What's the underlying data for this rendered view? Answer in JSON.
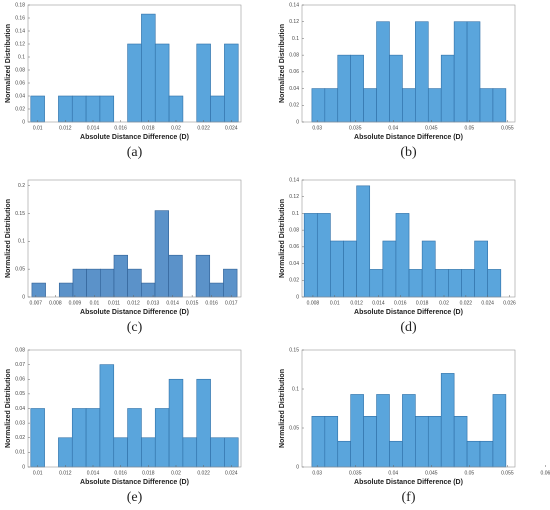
{
  "chart_data": [
    {
      "type": "histogram",
      "caption": "(a)",
      "xlabel": "Absolute Distance Difference (D)",
      "ylabel": "Normalized Distribution",
      "color": "#5aa5dc",
      "edgecolor": "#2f6fa6",
      "bins": [
        0.0095,
        0.0105,
        0.0115,
        0.0125,
        0.0135,
        0.0145,
        0.0155,
        0.0165,
        0.0175,
        0.0185,
        0.0195,
        0.0205,
        0.0215,
        0.0225,
        0.0235,
        0.0245
      ],
      "values": [
        0.04,
        0,
        0.04,
        0.04,
        0.04,
        0.04,
        0,
        0.12,
        0.166,
        0.12,
        0.04,
        0,
        0.12,
        0.04,
        0.12
      ],
      "xlim": [
        0.0093,
        0.0247
      ],
      "xticks": [
        0.01,
        0.012,
        0.014,
        0.016,
        0.018,
        0.02,
        0.022,
        0.024
      ],
      "ylim": [
        0,
        0.18
      ],
      "yticks": [
        0,
        0.02,
        0.04,
        0.06,
        0.08,
        0.1,
        0.12,
        0.14,
        0.16,
        0.18
      ]
    },
    {
      "type": "histogram",
      "caption": "(b)",
      "xlabel": "Absolute Distance Difference (D)",
      "ylabel": "Normalized Distribution",
      "color": "#5aa5dc",
      "edgecolor": "#2f6fa6",
      "bins": [
        0.0293,
        0.031,
        0.0327,
        0.0344,
        0.0361,
        0.0378,
        0.0395,
        0.0412,
        0.0429,
        0.0446,
        0.0463,
        0.048,
        0.0497,
        0.0514,
        0.0531,
        0.0548
      ],
      "values": [
        0.04,
        0.04,
        0.08,
        0.08,
        0.04,
        0.12,
        0.08,
        0.04,
        0.12,
        0.04,
        0.08,
        0.12,
        0.12,
        0.04,
        0.04
      ],
      "xlim": [
        0.028,
        0.056
      ],
      "xticks": [
        0.03,
        0.035,
        0.04,
        0.045,
        0.05,
        0.055
      ],
      "ylim": [
        0,
        0.14
      ],
      "yticks": [
        0,
        0.02,
        0.04,
        0.06,
        0.08,
        0.1,
        0.12,
        0.14
      ]
    },
    {
      "type": "histogram",
      "caption": "(c)",
      "xlabel": "Absolute Distance Difference (D)",
      "ylabel": "Normalized Distribution",
      "color": "#5b92c9",
      "edgecolor": "#2f5f94",
      "bins": [
        0.0068,
        0.0075,
        0.0082,
        0.0089,
        0.0096,
        0.0103,
        0.011,
        0.0117,
        0.0124,
        0.0131,
        0.0138,
        0.0145,
        0.0152,
        0.0159,
        0.0166,
        0.0173
      ],
      "values": [
        0.025,
        0,
        0.025,
        0.05,
        0.05,
        0.05,
        0.075,
        0.05,
        0.025,
        0.155,
        0.075,
        0,
        0.075,
        0.025,
        0.05
      ],
      "xlim": [
        0.0066,
        0.0175
      ],
      "xticks": [
        0.007,
        0.008,
        0.009,
        0.01,
        0.011,
        0.012,
        0.013,
        0.014,
        0.015,
        0.016,
        0.017
      ],
      "ylim": [
        0,
        0.21
      ],
      "yticks": [
        0,
        0.05,
        0.1,
        0.15,
        0.2
      ]
    },
    {
      "type": "histogram",
      "caption": "(d)",
      "xlabel": "Absolute Distance Difference (D)",
      "ylabel": "Normalized Distribution",
      "color": "#5aa5dc",
      "edgecolor": "#2f6fa6",
      "bins": [
        0.0072,
        0.0084,
        0.0096,
        0.0108,
        0.012,
        0.0132,
        0.0144,
        0.0156,
        0.0168,
        0.018,
        0.0192,
        0.0204,
        0.0216,
        0.0228,
        0.024,
        0.0252
      ],
      "values": [
        0.1,
        0.1,
        0.067,
        0.067,
        0.133,
        0.033,
        0.067,
        0.1,
        0.033,
        0.067,
        0.033,
        0.033,
        0.033,
        0.067,
        0.033
      ],
      "xlim": [
        0.007,
        0.0265
      ],
      "xticks": [
        0.008,
        0.01,
        0.012,
        0.014,
        0.016,
        0.018,
        0.02,
        0.022,
        0.024,
        0.026
      ],
      "ylim": [
        0,
        0.14
      ],
      "yticks": [
        0,
        0.02,
        0.04,
        0.06,
        0.08,
        0.1,
        0.12,
        0.14
      ]
    },
    {
      "type": "histogram",
      "caption": "(e)",
      "xlabel": "Absolute Distance Difference (D)",
      "ylabel": "Normalized Distribution",
      "color": "#5aa5dc",
      "edgecolor": "#2f6fa6",
      "bins": [
        0.0095,
        0.0105,
        0.0115,
        0.0125,
        0.0135,
        0.0145,
        0.0155,
        0.0165,
        0.0175,
        0.0185,
        0.0195,
        0.0205,
        0.0215,
        0.0225,
        0.0235,
        0.0245
      ],
      "values": [
        0.04,
        0,
        0.02,
        0.04,
        0.04,
        0.07,
        0.02,
        0.04,
        0.02,
        0.04,
        0.06,
        0.02,
        0.06,
        0.02,
        0.02
      ],
      "xlim": [
        0.0093,
        0.0247
      ],
      "xticks": [
        0.01,
        0.012,
        0.014,
        0.016,
        0.018,
        0.02,
        0.022,
        0.024
      ],
      "ylim": [
        0,
        0.08
      ],
      "yticks": [
        0,
        0.01,
        0.02,
        0.03,
        0.04,
        0.05,
        0.06,
        0.07,
        0.08
      ]
    },
    {
      "type": "histogram",
      "caption": "(f)",
      "xlabel": "Absolute Distance Difference (D)",
      "ylabel": "Normalized Distribution",
      "color": "#5aa5dc",
      "edgecolor": "#2f6fa6",
      "bins": [
        0.0293,
        0.031,
        0.0327,
        0.0344,
        0.0361,
        0.0378,
        0.0395,
        0.0412,
        0.0429,
        0.0446,
        0.0463,
        0.048,
        0.0497,
        0.0514,
        0.0531,
        0.0548
      ],
      "values": [
        0.065,
        0.065,
        0.033,
        0.093,
        0.065,
        0.093,
        0.033,
        0.093,
        0.065,
        0.065,
        0.12,
        0.065,
        0.033,
        0.033,
        0.093
      ],
      "xlim": [
        0.028,
        0.056
      ],
      "xticks": [
        0.03,
        0.035,
        0.04,
        0.045,
        0.05,
        0.055,
        0.06
      ],
      "ylim": [
        0,
        0.15
      ],
      "yticks": [
        0,
        0.05,
        0.1,
        0.15
      ]
    }
  ]
}
